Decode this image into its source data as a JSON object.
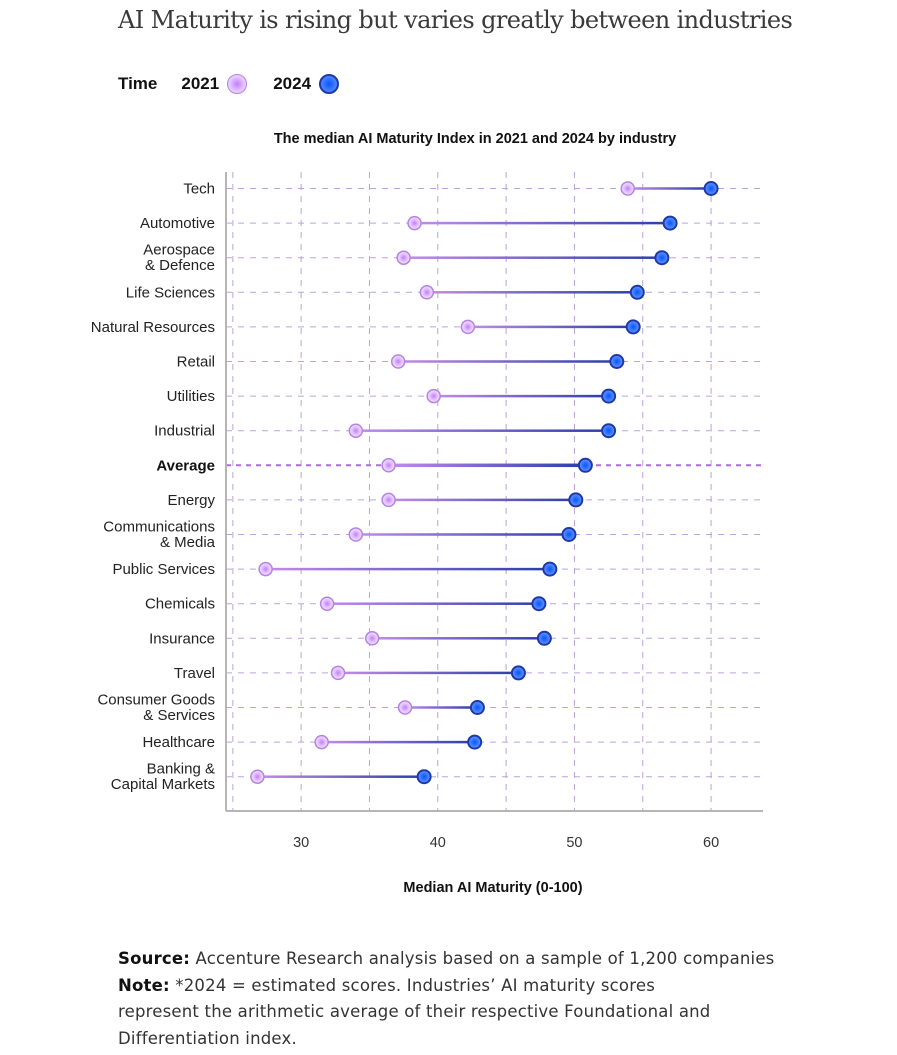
{
  "title": "AI Maturity is rising but varies greatly between industries",
  "legend": {
    "label": "Time",
    "items": [
      {
        "year": "2021",
        "icon": "light-purple-circle"
      },
      {
        "year": "2024",
        "icon": "blue-circle"
      }
    ]
  },
  "colors": {
    "y2021_fill": "#e3c6ff",
    "y2021_center": "#c77bff",
    "y2021_stroke": "#b584e0",
    "y2024_fill": "#3d7dff",
    "y2024_center": "#0a55ff",
    "y2024_stroke": "#1f38a8",
    "line_start": "#c48ce8",
    "line_end": "#2a3ea8",
    "grid": "#b9a3dc",
    "average_grid": "#a86fd8",
    "axis": "#b5b5b5"
  },
  "chart_data": {
    "type": "dumbbell",
    "title": "The median AI Maturity Index in 2021 and 2024 by industry",
    "xlabel": "Median AI Maturity (0-100)",
    "ylabel": "",
    "xlim": [
      24.5,
      63.8
    ],
    "xticks": [
      30,
      40,
      50,
      60
    ],
    "xgrid": [
      25,
      30,
      35,
      40,
      45,
      50,
      55,
      60
    ],
    "grid": true,
    "legend_position": "top-left",
    "categories": [
      "Tech",
      "Automotive",
      "Aerospace\n& Defence",
      "Life Sciences",
      "Natural Resources",
      "Retail",
      "Utilities",
      "Industrial",
      "Average",
      "Energy",
      "Communications\n& Media",
      "Public Services",
      "Chemicals",
      "Insurance",
      "Travel",
      "Consumer Goods\n& Services",
      "Healthcare",
      "Banking &\nCapital Markets"
    ],
    "highlight": "Average",
    "series": [
      {
        "name": "2021",
        "values": [
          53.9,
          38.3,
          37.5,
          39.2,
          42.2,
          37.1,
          39.7,
          34.0,
          36.4,
          36.4,
          34.0,
          27.4,
          31.9,
          35.2,
          32.7,
          37.6,
          31.5,
          26.8
        ]
      },
      {
        "name": "2024",
        "values": [
          60.0,
          57.0,
          56.4,
          54.6,
          54.3,
          53.1,
          52.5,
          52.5,
          50.8,
          50.1,
          49.6,
          48.2,
          47.4,
          47.8,
          45.9,
          42.9,
          42.7,
          39.0
        ]
      }
    ]
  },
  "footer": {
    "source_label": "Source:",
    "source_text": " Accenture Research analysis based on a sample of 1,200 companies",
    "note_label": "Note:",
    "note_text": " *2024 = estimated scores. Industries’ AI maturity scores represent the arithmetic average of their respective Foundational and Differentiation index."
  }
}
